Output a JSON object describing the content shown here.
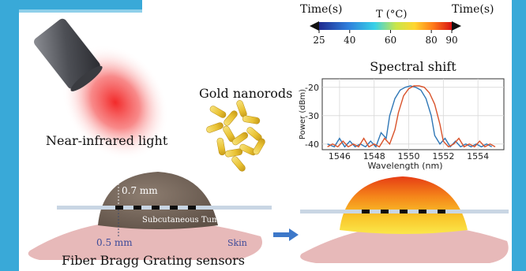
{
  "labels": {
    "time_left": "Time(s)",
    "temp_label": "T (°C)",
    "time_right": "Time(s)",
    "gold_nanorods": "Gold nanorods",
    "nir_light": "Near-infrared light",
    "dim_top": "0.7 mm",
    "tumor": "Subcutaneous Tumor",
    "dim_bottom": "0.5 mm",
    "skin": "Skin",
    "fbg": "Fiber Bragg Grating sensors"
  },
  "colorbar": {
    "ticks": [
      "25",
      "40",
      "60",
      "80",
      "90"
    ]
  },
  "colors": {
    "frame_blue": "#39a9d8",
    "fiber": "#c9d6e4",
    "tumor_brown": "#7a6a5d",
    "skin_pink": "#e7b9b9",
    "laser_red": "#ef2a2a",
    "nanorod_yellow": "#f2d34a",
    "arrow_blue": "#3d78c9",
    "series_blue": "#2f77b6",
    "series_orange": "#d9532b"
  },
  "chart_data": {
    "type": "line",
    "title": "Spectral shift",
    "xlabel": "Wavelength (nm)",
    "ylabel": "Power (dBm)",
    "xlim": [
      1545,
      1555.5
    ],
    "ylim": [
      -42,
      -17
    ],
    "xticks": [
      "1546",
      "1548",
      "1550",
      "1552",
      "1554"
    ],
    "yticks": [
      "-20",
      "-30",
      "-40"
    ],
    "grid": true,
    "series": [
      {
        "color": "#2f77b6",
        "x": [
          1545.3,
          1545.7,
          1546.0,
          1546.3,
          1546.6,
          1546.9,
          1547.2,
          1547.5,
          1547.8,
          1548.1,
          1548.4,
          1548.7,
          1548.9,
          1549.2,
          1549.5,
          1549.8,
          1550.1,
          1550.4,
          1550.7,
          1551.0,
          1551.3,
          1551.5,
          1551.8,
          1552.1,
          1552.4,
          1552.7,
          1553.0,
          1553.3,
          1553.6,
          1553.9,
          1554.2,
          1554.5,
          1554.8
        ],
        "y": [
          -40,
          -41,
          -38,
          -41,
          -39,
          -41,
          -40,
          -41,
          -39,
          -41,
          -36,
          -38,
          -30,
          -24,
          -21,
          -20,
          -19.5,
          -20,
          -21,
          -24,
          -30,
          -37,
          -40,
          -38,
          -41,
          -39,
          -41,
          -40,
          -41,
          -40,
          -41,
          -40,
          -41
        ]
      },
      {
        "color": "#d9532b",
        "x": [
          1545.3,
          1545.6,
          1545.9,
          1546.2,
          1546.5,
          1546.8,
          1547.1,
          1547.4,
          1547.7,
          1548.0,
          1548.3,
          1548.6,
          1548.9,
          1549.2,
          1549.4,
          1549.7,
          1550.0,
          1550.3,
          1550.6,
          1550.9,
          1551.2,
          1551.5,
          1551.8,
          1552.0,
          1552.3,
          1552.6,
          1552.9,
          1553.2,
          1553.5,
          1553.8,
          1554.1,
          1554.4,
          1554.7,
          1555.0
        ],
        "y": [
          -41,
          -40,
          -41,
          -39,
          -41,
          -40,
          -41,
          -38,
          -41,
          -40,
          -41,
          -38,
          -40,
          -35,
          -29,
          -23,
          -20.5,
          -19.5,
          -19.5,
          -20,
          -22,
          -26,
          -33,
          -39,
          -41,
          -40,
          -38,
          -41,
          -40,
          -41,
          -39,
          -41,
          -40,
          -41
        ]
      }
    ]
  }
}
